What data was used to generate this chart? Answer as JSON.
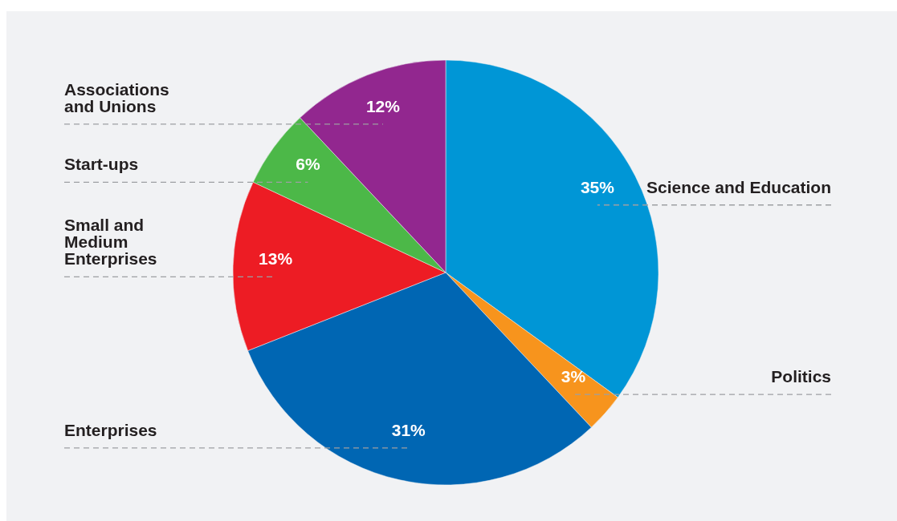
{
  "chart_data": {
    "type": "pie",
    "categories": [
      "Science and Education",
      "Politics",
      "Enterprises",
      "Small and Medium Enterprises",
      "Start-ups",
      "Associations and Unions"
    ],
    "values": [
      35,
      3,
      31,
      13,
      6,
      12
    ],
    "colors": [
      "#0096d6",
      "#f7941d",
      "#0066b3",
      "#ed1c24",
      "#4cb848",
      "#92278f"
    ],
    "value_labels": [
      "35%",
      "3%",
      "31%",
      "13%",
      "6%",
      "12%"
    ],
    "legend": false
  }
}
